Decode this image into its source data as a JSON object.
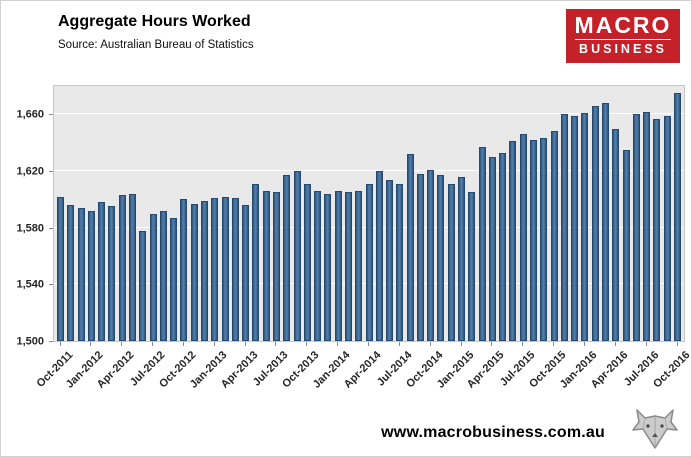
{
  "header": {
    "title": "Aggregate Hours Worked",
    "source": "Source: Australian Bureau of Statistics",
    "logo": {
      "line1": "MACRO",
      "line2": "BUSINESS",
      "bg_color": "#C42128",
      "text_color": "#FFFFFF"
    }
  },
  "footer": {
    "url": "www.macrobusiness.com.au",
    "icon": "wolf-logo"
  },
  "chart_data": {
    "type": "bar",
    "title": "Aggregate Hours Worked",
    "xlabel": "",
    "ylabel": "",
    "ylim": [
      1500,
      1680
    ],
    "yticks": [
      1500,
      1540,
      1580,
      1620,
      1660
    ],
    "ytick_labels": [
      "1,500",
      "1,540",
      "1,580",
      "1,620",
      "1,660"
    ],
    "x_tick_every": 3,
    "grid": true,
    "legend": "none",
    "plot_bg": "#E9E9E9",
    "gridline_color": "#FFFFFF",
    "bar_color": "#44719D",
    "bar_border_color": "#26496E",
    "categories": [
      "Oct-2011",
      "Nov-2011",
      "Dec-2011",
      "Jan-2012",
      "Feb-2012",
      "Mar-2012",
      "Apr-2012",
      "May-2012",
      "Jun-2012",
      "Jul-2012",
      "Aug-2012",
      "Sep-2012",
      "Oct-2012",
      "Nov-2012",
      "Dec-2012",
      "Jan-2013",
      "Feb-2013",
      "Mar-2013",
      "Apr-2013",
      "May-2013",
      "Jun-2013",
      "Jul-2013",
      "Aug-2013",
      "Sep-2013",
      "Oct-2013",
      "Nov-2013",
      "Dec-2013",
      "Jan-2014",
      "Feb-2014",
      "Mar-2014",
      "Apr-2014",
      "May-2014",
      "Jun-2014",
      "Jul-2014",
      "Aug-2014",
      "Sep-2014",
      "Oct-2014",
      "Nov-2014",
      "Dec-2014",
      "Jan-2015",
      "Feb-2015",
      "Mar-2015",
      "Apr-2015",
      "May-2015",
      "Jun-2015",
      "Jul-2015",
      "Aug-2015",
      "Sep-2015",
      "Oct-2015",
      "Nov-2015",
      "Dec-2015",
      "Jan-2016",
      "Feb-2016",
      "Mar-2016",
      "Apr-2016",
      "May-2016",
      "Jun-2016",
      "Jul-2016",
      "Aug-2016",
      "Sep-2016",
      "Oct-2016"
    ],
    "values": [
      1602,
      1596,
      1594,
      1592,
      1598,
      1595,
      1603,
      1604,
      1578,
      1590,
      1592,
      1587,
      1600,
      1597,
      1599,
      1601,
      1602,
      1601,
      1596,
      1611,
      1606,
      1605,
      1617,
      1620,
      1611,
      1606,
      1604,
      1606,
      1605,
      1606,
      1611,
      1620,
      1614,
      1611,
      1632,
      1618,
      1621,
      1617,
      1611,
      1616,
      1605,
      1637,
      1630,
      1633,
      1641,
      1646,
      1642,
      1643,
      1648,
      1660,
      1659,
      1661,
      1666,
      1668,
      1650,
      1635,
      1660,
      1662,
      1657,
      1659,
      1675
    ],
    "x_tick_labels": [
      "Oct-2011",
      "Jan-2012",
      "Apr-2012",
      "Jul-2012",
      "Oct-2012",
      "Jan-2013",
      "Apr-2013",
      "Jul-2013",
      "Oct-2013",
      "Jan-2014",
      "Apr-2014",
      "Jul-2014",
      "Oct-2014",
      "Jan-2015",
      "Apr-2015",
      "Jul-2015",
      "Oct-2015",
      "Jan-2016",
      "Apr-2016",
      "Jul-2016",
      "Oct-2016"
    ]
  }
}
